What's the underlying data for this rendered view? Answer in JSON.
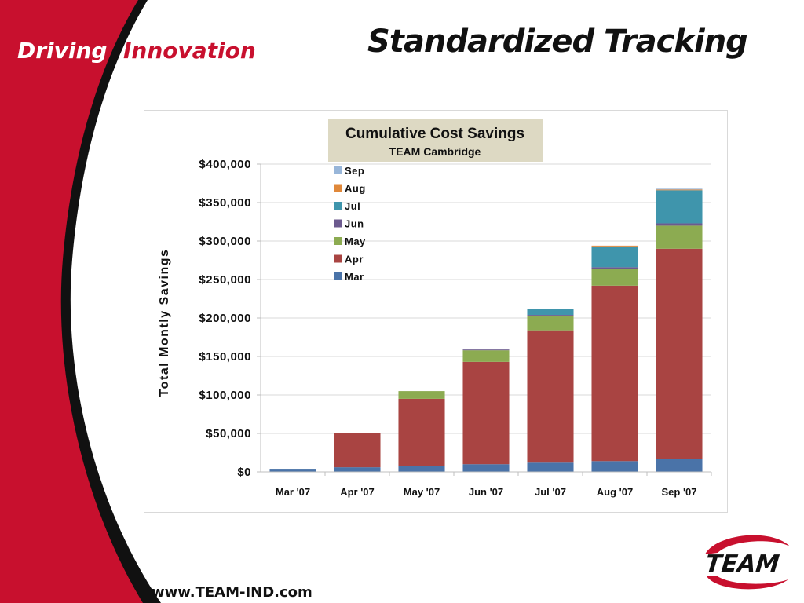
{
  "slide": {
    "brand_driving": "Driving",
    "brand_innovation": "Innovation",
    "title": "Standardized Tracking",
    "website": "www.TEAM-IND.com",
    "logo_text": "TEAM",
    "colors": {
      "brand_red": "#c8102e",
      "title_bg": "#ddd9c3"
    }
  },
  "chart_data": {
    "type": "bar",
    "stacked": true,
    "title": "Cumulative Cost Savings",
    "subtitle": "TEAM Cambridge",
    "xlabel": "",
    "ylabel": "Total Montly Savings",
    "categories": [
      "Mar '07",
      "Apr '07",
      "May '07",
      "Jun '07",
      "Jul '07",
      "Aug '07",
      "Sep '07"
    ],
    "ylim": [
      0,
      400000
    ],
    "yticks": [
      0,
      50000,
      100000,
      150000,
      200000,
      250000,
      300000,
      350000,
      400000
    ],
    "ytick_labels": [
      "$0",
      "$50,000",
      "$100,000",
      "$150,000",
      "$200,000",
      "$250,000",
      "$300,000",
      "$350,000",
      "$400,000"
    ],
    "grid": true,
    "legend_position": "top-left",
    "series": [
      {
        "name": "Mar",
        "color": "#4a73a8",
        "values": [
          4000,
          6000,
          8000,
          10000,
          12000,
          14000,
          17000
        ]
      },
      {
        "name": "Apr",
        "color": "#a94442",
        "values": [
          0,
          44000,
          87000,
          133000,
          172000,
          228000,
          273000
        ]
      },
      {
        "name": "May",
        "color": "#8cab51",
        "values": [
          0,
          0,
          10000,
          15000,
          19000,
          22000,
          30000
        ]
      },
      {
        "name": "Jun",
        "color": "#6c5a8e",
        "values": [
          0,
          0,
          0,
          1000,
          1000,
          2000,
          3000
        ]
      },
      {
        "name": "Jul",
        "color": "#3f95ac",
        "values": [
          0,
          0,
          0,
          0,
          8000,
          27000,
          43000
        ]
      },
      {
        "name": "Aug",
        "color": "#e0883a",
        "values": [
          0,
          0,
          0,
          0,
          0,
          1000,
          1000
        ]
      },
      {
        "name": "Sep",
        "color": "#98b6d9",
        "values": [
          0,
          0,
          0,
          0,
          0,
          0,
          1000
        ]
      }
    ]
  }
}
